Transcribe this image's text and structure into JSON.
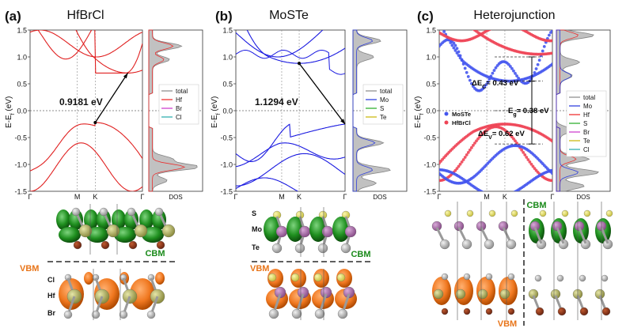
{
  "panels": [
    {
      "letter": "(a)",
      "title": "HfBrCl",
      "band_gap_label": "0.9181 eV",
      "legend": [
        "total",
        "Hf",
        "Br",
        "Cl"
      ],
      "legend_colors": [
        "#888888",
        "#ee2222",
        "#cc33cc",
        "#22aaaa"
      ],
      "band_color": "#e02020",
      "cbm_label": "CBM",
      "vbm_label": "VBM",
      "atom_labels": [
        "Cl",
        "Hf",
        "Br"
      ]
    },
    {
      "letter": "(b)",
      "title": "MoSTe",
      "band_gap_label": "1.1294 eV",
      "legend": [
        "total",
        "Mo",
        "S",
        "Te"
      ],
      "legend_colors": [
        "#888888",
        "#2233dd",
        "#22aa22",
        "#c9b300"
      ],
      "band_color": "#1a1ae0",
      "cbm_label": "CBM",
      "vbm_label": "VBM",
      "atom_labels": [
        "S",
        "Mo",
        "Te"
      ]
    },
    {
      "letter": "(c)",
      "title": "Heterojunction",
      "legend": [
        "total",
        "Mo",
        "Hf",
        "S",
        "Br",
        "Te",
        "Cl"
      ],
      "legend_colors": [
        "#888888",
        "#2233dd",
        "#ee2222",
        "#22aa22",
        "#cc33cc",
        "#c9b300",
        "#22aaaa"
      ],
      "series_legend": [
        "MoSTe",
        "HfBrCl"
      ],
      "series_colors": [
        "#4455ee",
        "#ee4455"
      ],
      "annotations": [
        "ΔE",
        "= 0.43 eV",
        "E",
        "= 0.38 eV",
        "ΔE",
        "= 0.62 eV"
      ],
      "annotation_subs": [
        "C",
        "g",
        "V"
      ],
      "cbm_label": "CBM",
      "vbm_label": "VBM"
    }
  ],
  "axes": {
    "ylabel": "E-E",
    "ylabel_sub": "f",
    "ylabel_suffix": " (eV)",
    "yticks": [
      "1.5",
      "1.0",
      "0.5",
      "0.0",
      "-0.5",
      "-1.0",
      "-1.5"
    ],
    "xticks": [
      "Γ",
      "M",
      "K",
      "Γ"
    ],
    "dos_label": "DOS"
  },
  "chart_data": [
    {
      "type": "line",
      "title": "HfBrCl",
      "ylabel": "E-Ef (eV)",
      "ylim": [
        -1.5,
        1.5
      ],
      "x_ticks": [
        "Γ",
        "M",
        "K",
        "Γ"
      ],
      "band_gap_eV": 0.9181,
      "cbm_eV": 0.7,
      "vbm_eV": -0.22
    },
    {
      "type": "line",
      "title": "MoSTe",
      "ylabel": "E-Ef (eV)",
      "ylim": [
        -1.5,
        1.5
      ],
      "x_ticks": [
        "Γ",
        "M",
        "K",
        "Γ"
      ],
      "band_gap_eV": 1.1294,
      "cbm_eV": 0.88,
      "vbm_eV": -0.25
    },
    {
      "type": "scatter",
      "title": "Heterojunction",
      "ylabel": "E-Ef (eV)",
      "ylim": [
        -1.5,
        1.5
      ],
      "x_ticks": [
        "Γ",
        "M",
        "K",
        "Γ"
      ],
      "series": [
        {
          "name": "MoSTe"
        },
        {
          "name": "HfBrCl"
        }
      ],
      "delta_Ec_eV": 0.43,
      "Eg_eV": 0.38,
      "delta_Ev_eV": 0.62
    }
  ]
}
